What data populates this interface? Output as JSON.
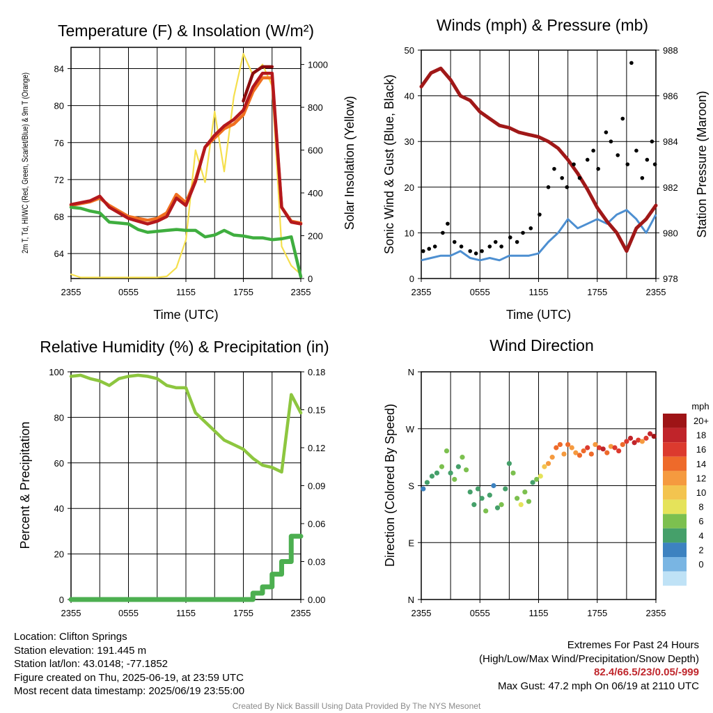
{
  "chart_data": [
    {
      "type": "line",
      "title": "Temperature (F) & Insolation (W/m²)",
      "xlabel": "Time (UTC)",
      "ylabel": "2m T, Td, HI/WC (Red, Green, Scarlet/Blue) & 9m T (Orange)",
      "y2label": "Solar Insolation (Yellow)",
      "x_ticks": [
        "2355",
        "0555",
        "1155",
        "1755",
        "2355"
      ],
      "y_ticks": [
        64,
        68,
        72,
        76,
        80,
        84
      ],
      "y2_ticks": [
        0,
        200,
        400,
        600,
        800,
        1000
      ],
      "ylim": [
        61.3,
        86.3
      ],
      "y2lim": [
        0,
        1080
      ],
      "grid": true,
      "x_hours": [
        0,
        1,
        2,
        3,
        4,
        5,
        6,
        7,
        8,
        9,
        10,
        11,
        12,
        13,
        14,
        15,
        16,
        17,
        18,
        19,
        20,
        21,
        22,
        23,
        24
      ],
      "series": [
        {
          "name": "9m T",
          "color": "#f07020",
          "values": [
            69.2,
            69.4,
            69.6,
            70.0,
            69.2,
            68.6,
            68.0,
            67.8,
            67.6,
            67.8,
            68.4,
            70.4,
            69.5,
            72.0,
            75.5,
            76.5,
            77.5,
            78.0,
            79.0,
            81.5,
            83.0,
            83.0,
            69.0,
            67.5,
            67.3
          ]
        },
        {
          "name": "2m T",
          "color": "#b4181c",
          "values": [
            69.3,
            69.5,
            69.7,
            70.2,
            69.0,
            68.4,
            67.8,
            67.5,
            67.2,
            67.5,
            68.0,
            70.0,
            69.2,
            71.8,
            75.5,
            76.8,
            77.8,
            78.5,
            79.5,
            82.0,
            83.5,
            83.5,
            69.0,
            67.4,
            67.2
          ]
        },
        {
          "name": "HI/WC",
          "color": "#8b0c0e",
          "values": [
            null,
            null,
            null,
            null,
            null,
            null,
            null,
            null,
            null,
            null,
            null,
            null,
            null,
            null,
            null,
            null,
            null,
            null,
            80.5,
            83.5,
            84.2,
            84.2,
            null,
            null,
            null
          ]
        },
        {
          "name": "2m Td",
          "color": "#3fae3f",
          "values": [
            69.0,
            68.9,
            68.6,
            68.4,
            67.4,
            67.3,
            67.2,
            66.6,
            66.3,
            66.4,
            66.5,
            66.6,
            66.5,
            66.5,
            65.8,
            66.0,
            66.5,
            66.0,
            65.9,
            65.7,
            65.7,
            65.5,
            65.6,
            65.8,
            61.5
          ]
        },
        {
          "name": "Solar Insolation",
          "axis": "right",
          "color": "#f5df4d",
          "values": [
            20,
            5,
            5,
            5,
            5,
            5,
            5,
            5,
            5,
            5,
            10,
            50,
            180,
            600,
            450,
            780,
            500,
            850,
            1050,
            950,
            1000,
            900,
            150,
            60,
            20
          ]
        }
      ]
    },
    {
      "type": "line",
      "title": "Winds (mph) & Pressure (mb)",
      "xlabel": "Time (UTC)",
      "ylabel": "Sonic Wind & Gust (Blue, Black)",
      "y2label": "Station Pressure (Maroon)",
      "x_ticks": [
        "2355",
        "0555",
        "1155",
        "1755",
        "2355"
      ],
      "y_ticks": [
        0,
        10,
        20,
        30,
        40,
        50
      ],
      "y2_ticks": [
        978,
        980,
        982,
        984,
        986,
        988
      ],
      "ylim": [
        0,
        50
      ],
      "y2lim": [
        978,
        988
      ],
      "grid": true,
      "x_hours": [
        0,
        1,
        2,
        3,
        4,
        5,
        6,
        7,
        8,
        9,
        10,
        11,
        12,
        13,
        14,
        15,
        16,
        17,
        18,
        19,
        20,
        21,
        22,
        23,
        24
      ],
      "series": [
        {
          "name": "Sonic Wind",
          "color": "#4d8fd1",
          "values": [
            4,
            4.5,
            5,
            5,
            6,
            4.5,
            4,
            4.5,
            4,
            5,
            5,
            5,
            5.5,
            8,
            10,
            13,
            11,
            12,
            13,
            12,
            14,
            15,
            13,
            10,
            14
          ]
        },
        {
          "name": "Pressure",
          "axis": "right",
          "color": "#a01818",
          "values": [
            986.4,
            987.0,
            987.2,
            986.7,
            986.0,
            985.8,
            985.3,
            985.0,
            984.7,
            984.6,
            984.4,
            984.3,
            984.2,
            984.0,
            983.7,
            983.2,
            982.6,
            981.9,
            981.1,
            980.5,
            980.0,
            979.2,
            980.2,
            980.6,
            981.2
          ]
        },
        {
          "name": "Gust",
          "type": "scatter",
          "color": "#000000",
          "x": [
            0.2,
            0.8,
            1.4,
            2.2,
            2.7,
            3.4,
            4.1,
            5.0,
            5.6,
            6.2,
            7.0,
            7.6,
            8.2,
            9.1,
            9.8,
            10.4,
            11.2,
            12.1,
            13.0,
            13.6,
            14.4,
            14.9,
            15.6,
            16.2,
            17.0,
            17.6,
            18.1,
            18.9,
            19.4,
            20.1,
            20.6,
            21.1,
            21.5,
            22.0,
            22.6,
            23.1,
            23.6,
            23.9
          ],
          "values": [
            6,
            6.5,
            7,
            10,
            12,
            8,
            7,
            6,
            5.5,
            6,
            7,
            8,
            7,
            9,
            8,
            10,
            11,
            14,
            20,
            24,
            22,
            20,
            25,
            22,
            26,
            28,
            24,
            32,
            30,
            27,
            35,
            25,
            47.2,
            28,
            22,
            26,
            30,
            25
          ]
        }
      ]
    },
    {
      "type": "line",
      "title": "Relative Humidity (%) & Precipitation (in)",
      "ylabel": "Percent & Precipitation",
      "x_ticks": [
        "2355",
        "0555",
        "1155",
        "1755",
        "2355"
      ],
      "y_ticks": [
        0,
        20,
        40,
        60,
        80,
        100
      ],
      "y2_ticks": [
        "0.00",
        "0.03",
        "0.06",
        "0.09",
        "0.12",
        "0.15",
        "0.18"
      ],
      "ylim": [
        0,
        100
      ],
      "y2lim": [
        0,
        0.18
      ],
      "grid": true,
      "x_hours": [
        0,
        1,
        2,
        3,
        4,
        5,
        6,
        7,
        8,
        9,
        10,
        11,
        12,
        13,
        14,
        15,
        16,
        17,
        18,
        19,
        20,
        21,
        22,
        23,
        24
      ],
      "series": [
        {
          "name": "Relative Humidity",
          "color": "#8dc63f",
          "values": [
            98,
            98.5,
            97,
            96,
            94,
            97,
            98,
            98.5,
            98,
            97,
            94,
            93,
            93,
            82,
            78,
            74,
            70,
            68,
            66,
            62,
            59,
            58,
            56,
            90,
            82
          ]
        },
        {
          "name": "Precipitation",
          "axis": "right",
          "type": "step",
          "color": "#4caf50",
          "values": [
            0,
            0,
            0,
            0,
            0,
            0,
            0,
            0,
            0,
            0,
            0,
            0,
            0,
            0,
            0,
            0,
            0,
            0,
            0,
            0.005,
            0.01,
            0.02,
            0.03,
            0.05,
            0.05
          ]
        }
      ]
    },
    {
      "type": "scatter",
      "title": "Wind Direction",
      "ylabel": "Direction (Colored By Speed)",
      "x_ticks": [
        "2355",
        "0555",
        "1155",
        "1755",
        "2355"
      ],
      "y_ticks": [
        "N",
        "E",
        "S",
        "W",
        "N"
      ],
      "ylim": [
        0,
        360
      ],
      "grid": true,
      "legend": {
        "title": "mph",
        "position": "right",
        "labels": [
          "20+",
          "18",
          "16",
          "14",
          "12",
          "10",
          "8",
          "6",
          "4",
          "2",
          "0"
        ],
        "colors": [
          "#9e1416",
          "#c0242a",
          "#dc3a2e",
          "#ee6a2a",
          "#f59a3f",
          "#f3c44f",
          "#e5e35a",
          "#7cc04f",
          "#45a06a",
          "#3d82c0",
          "#79b5e3",
          "#bfe2f6"
        ]
      },
      "x_hours": [
        0.2,
        0.6,
        1.1,
        1.6,
        2.1,
        2.6,
        3.0,
        3.4,
        3.8,
        4.2,
        4.6,
        5.0,
        5.4,
        5.8,
        6.2,
        6.6,
        7.0,
        7.4,
        7.8,
        8.2,
        8.6,
        9.0,
        9.4,
        9.8,
        10.2,
        10.6,
        11.0,
        11.4,
        11.8,
        12.2,
        12.6,
        13.0,
        13.4,
        13.8,
        14.2,
        14.6,
        15.0,
        15.4,
        15.8,
        16.2,
        16.6,
        17.0,
        17.4,
        17.8,
        18.2,
        18.6,
        19.0,
        19.4,
        19.8,
        20.2,
        20.6,
        21.0,
        21.4,
        21.8,
        22.2,
        22.6,
        23.0,
        23.4,
        23.8
      ],
      "values": [
        175,
        185,
        195,
        200,
        210,
        235,
        200,
        190,
        210,
        225,
        205,
        170,
        150,
        175,
        160,
        140,
        165,
        180,
        145,
        150,
        175,
        215,
        200,
        160,
        150,
        170,
        155,
        185,
        190,
        195,
        210,
        215,
        225,
        240,
        245,
        230,
        245,
        240,
        232,
        228,
        235,
        240,
        230,
        245,
        240,
        238,
        232,
        242,
        240,
        235,
        245,
        250,
        255,
        248,
        252,
        250,
        255,
        262,
        258
      ],
      "speeds": [
        2,
        4,
        4,
        3,
        6,
        5,
        3,
        6,
        4,
        5,
        6,
        4,
        3,
        4,
        4,
        5,
        3,
        2,
        4,
        5,
        3,
        4,
        5,
        6,
        7,
        6,
        5,
        4,
        6,
        8,
        10,
        11,
        12,
        13,
        14,
        12,
        13,
        12,
        11,
        13,
        14,
        15,
        14,
        12,
        16,
        17,
        13,
        12,
        15,
        16,
        14,
        15,
        17,
        18,
        16,
        11,
        15,
        17,
        20
      ]
    }
  ],
  "footer": {
    "location": "Location: Clifton Springs",
    "elevation": "Station elevation: 191.445 m",
    "latlon": "Station lat/lon: 43.0148; -77.1852",
    "created": "Figure created on Thu, 2025-06-19, at 23:59 UTC",
    "recent": "Most recent data timestamp: 2025/06/19 23:55:00",
    "extremes_title": "Extremes For Past 24 Hours",
    "extremes_subtitle": "(High/Low/Max Wind/Precipitation/Snow Depth)",
    "extremes_values": "82.4/66.5/23/0.05/-999",
    "max_gust": "Max Gust: 47.2 mph On 06/19 at 2110 UTC",
    "credit": "Created By Nick Bassill Using Data Provided By The NYS Mesonet"
  }
}
